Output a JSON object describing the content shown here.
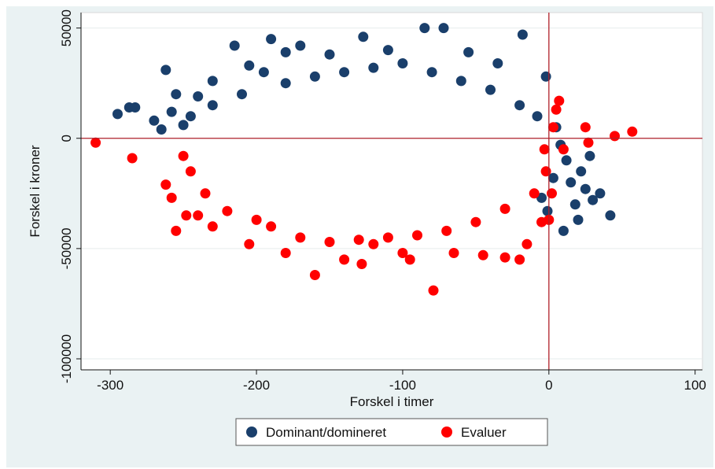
{
  "caption": "",
  "chart_data": {
    "type": "scatter",
    "title": "",
    "xlabel": "Forskel i timer",
    "ylabel": "Forskel i kroner",
    "xlim": [
      -320,
      105
    ],
    "ylim": [
      -105000,
      57000
    ],
    "xticks": [
      -300,
      -200,
      -100,
      0,
      100
    ],
    "yticks": [
      50000,
      0,
      -50000,
      -100000
    ],
    "xtick_labels": [
      "-300",
      "-200",
      "-100",
      "0",
      "100"
    ],
    "ytick_labels": [
      "50000",
      "0",
      "-50000",
      "-100000"
    ],
    "reference_lines": {
      "x": 0,
      "y": 0,
      "color": "#b0202a"
    },
    "grid": "horizontal",
    "legend_position": "bottom",
    "series": [
      {
        "name": "Dominant/domineret",
        "color": "#1a3f6b",
        "values": [
          [
            -295,
            11000
          ],
          [
            -287,
            14000
          ],
          [
            -283,
            14000
          ],
          [
            -270,
            8000
          ],
          [
            -265,
            4000
          ],
          [
            -262,
            31000
          ],
          [
            -258,
            12000
          ],
          [
            -255,
            20000
          ],
          [
            -240,
            19000
          ],
          [
            -230,
            26000
          ],
          [
            -215,
            42000
          ],
          [
            -205,
            33000
          ],
          [
            -190,
            45000
          ],
          [
            -180,
            39000
          ],
          [
            -170,
            42000
          ],
          [
            -127,
            46000
          ],
          [
            -85,
            50000
          ],
          [
            -72,
            50000
          ],
          [
            -18,
            47000
          ],
          [
            -35,
            34000
          ],
          [
            -55,
            39000
          ],
          [
            -110,
            40000
          ],
          [
            -150,
            38000
          ],
          [
            -2,
            28000
          ],
          [
            5,
            5000
          ],
          [
            8,
            -3000
          ],
          [
            12,
            -10000
          ],
          [
            15,
            -20000
          ],
          [
            18,
            -30000
          ],
          [
            20,
            -37000
          ],
          [
            25,
            -23000
          ],
          [
            30,
            -28000
          ],
          [
            35,
            -25000
          ],
          [
            42,
            -35000
          ],
          [
            10,
            -42000
          ],
          [
            22,
            -15000
          ],
          [
            28,
            -8000
          ],
          [
            3,
            -18000
          ],
          [
            -5,
            -27000
          ],
          [
            -1,
            -33000
          ],
          [
            -180,
            25000
          ],
          [
            -160,
            28000
          ],
          [
            -140,
            30000
          ],
          [
            -120,
            32000
          ],
          [
            -100,
            34000
          ],
          [
            -80,
            30000
          ],
          [
            -60,
            26000
          ],
          [
            -40,
            22000
          ],
          [
            -20,
            15000
          ],
          [
            -8,
            10000
          ],
          [
            -230,
            15000
          ],
          [
            -245,
            10000
          ],
          [
            -250,
            6000
          ],
          [
            -210,
            20000
          ],
          [
            -195,
            30000
          ]
        ]
      },
      {
        "name": "Evaluer",
        "color": "#ff0000",
        "values": [
          [
            -310,
            -2000
          ],
          [
            -285,
            -9000
          ],
          [
            -262,
            -21000
          ],
          [
            -258,
            -27000
          ],
          [
            -255,
            -42000
          ],
          [
            -248,
            -35000
          ],
          [
            -240,
            -35000
          ],
          [
            -230,
            -40000
          ],
          [
            -205,
            -48000
          ],
          [
            -180,
            -52000
          ],
          [
            -160,
            -62000
          ],
          [
            -140,
            -55000
          ],
          [
            -128,
            -57000
          ],
          [
            -120,
            -48000
          ],
          [
            -100,
            -52000
          ],
          [
            -95,
            -55000
          ],
          [
            -79,
            -69000
          ],
          [
            -65,
            -52000
          ],
          [
            -45,
            -53000
          ],
          [
            -30,
            -54000
          ],
          [
            -20,
            -55000
          ],
          [
            -15,
            -48000
          ],
          [
            -5,
            -38000
          ],
          [
            0,
            -37000
          ],
          [
            5,
            13000
          ],
          [
            7,
            17000
          ],
          [
            3,
            5000
          ],
          [
            10,
            -5000
          ],
          [
            25,
            5000
          ],
          [
            27,
            -2000
          ],
          [
            45,
            1000
          ],
          [
            57,
            3000
          ],
          [
            2,
            -25000
          ],
          [
            -2,
            -15000
          ],
          [
            -3,
            -5000
          ],
          [
            -190,
            -40000
          ],
          [
            -170,
            -45000
          ],
          [
            -150,
            -47000
          ],
          [
            -130,
            -46000
          ],
          [
            -110,
            -45000
          ],
          [
            -90,
            -44000
          ],
          [
            -70,
            -42000
          ],
          [
            -50,
            -38000
          ],
          [
            -30,
            -32000
          ],
          [
            -10,
            -25000
          ],
          [
            -235,
            -25000
          ],
          [
            -245,
            -15000
          ],
          [
            -250,
            -8000
          ],
          [
            -220,
            -33000
          ],
          [
            -200,
            -37000
          ]
        ]
      }
    ]
  }
}
